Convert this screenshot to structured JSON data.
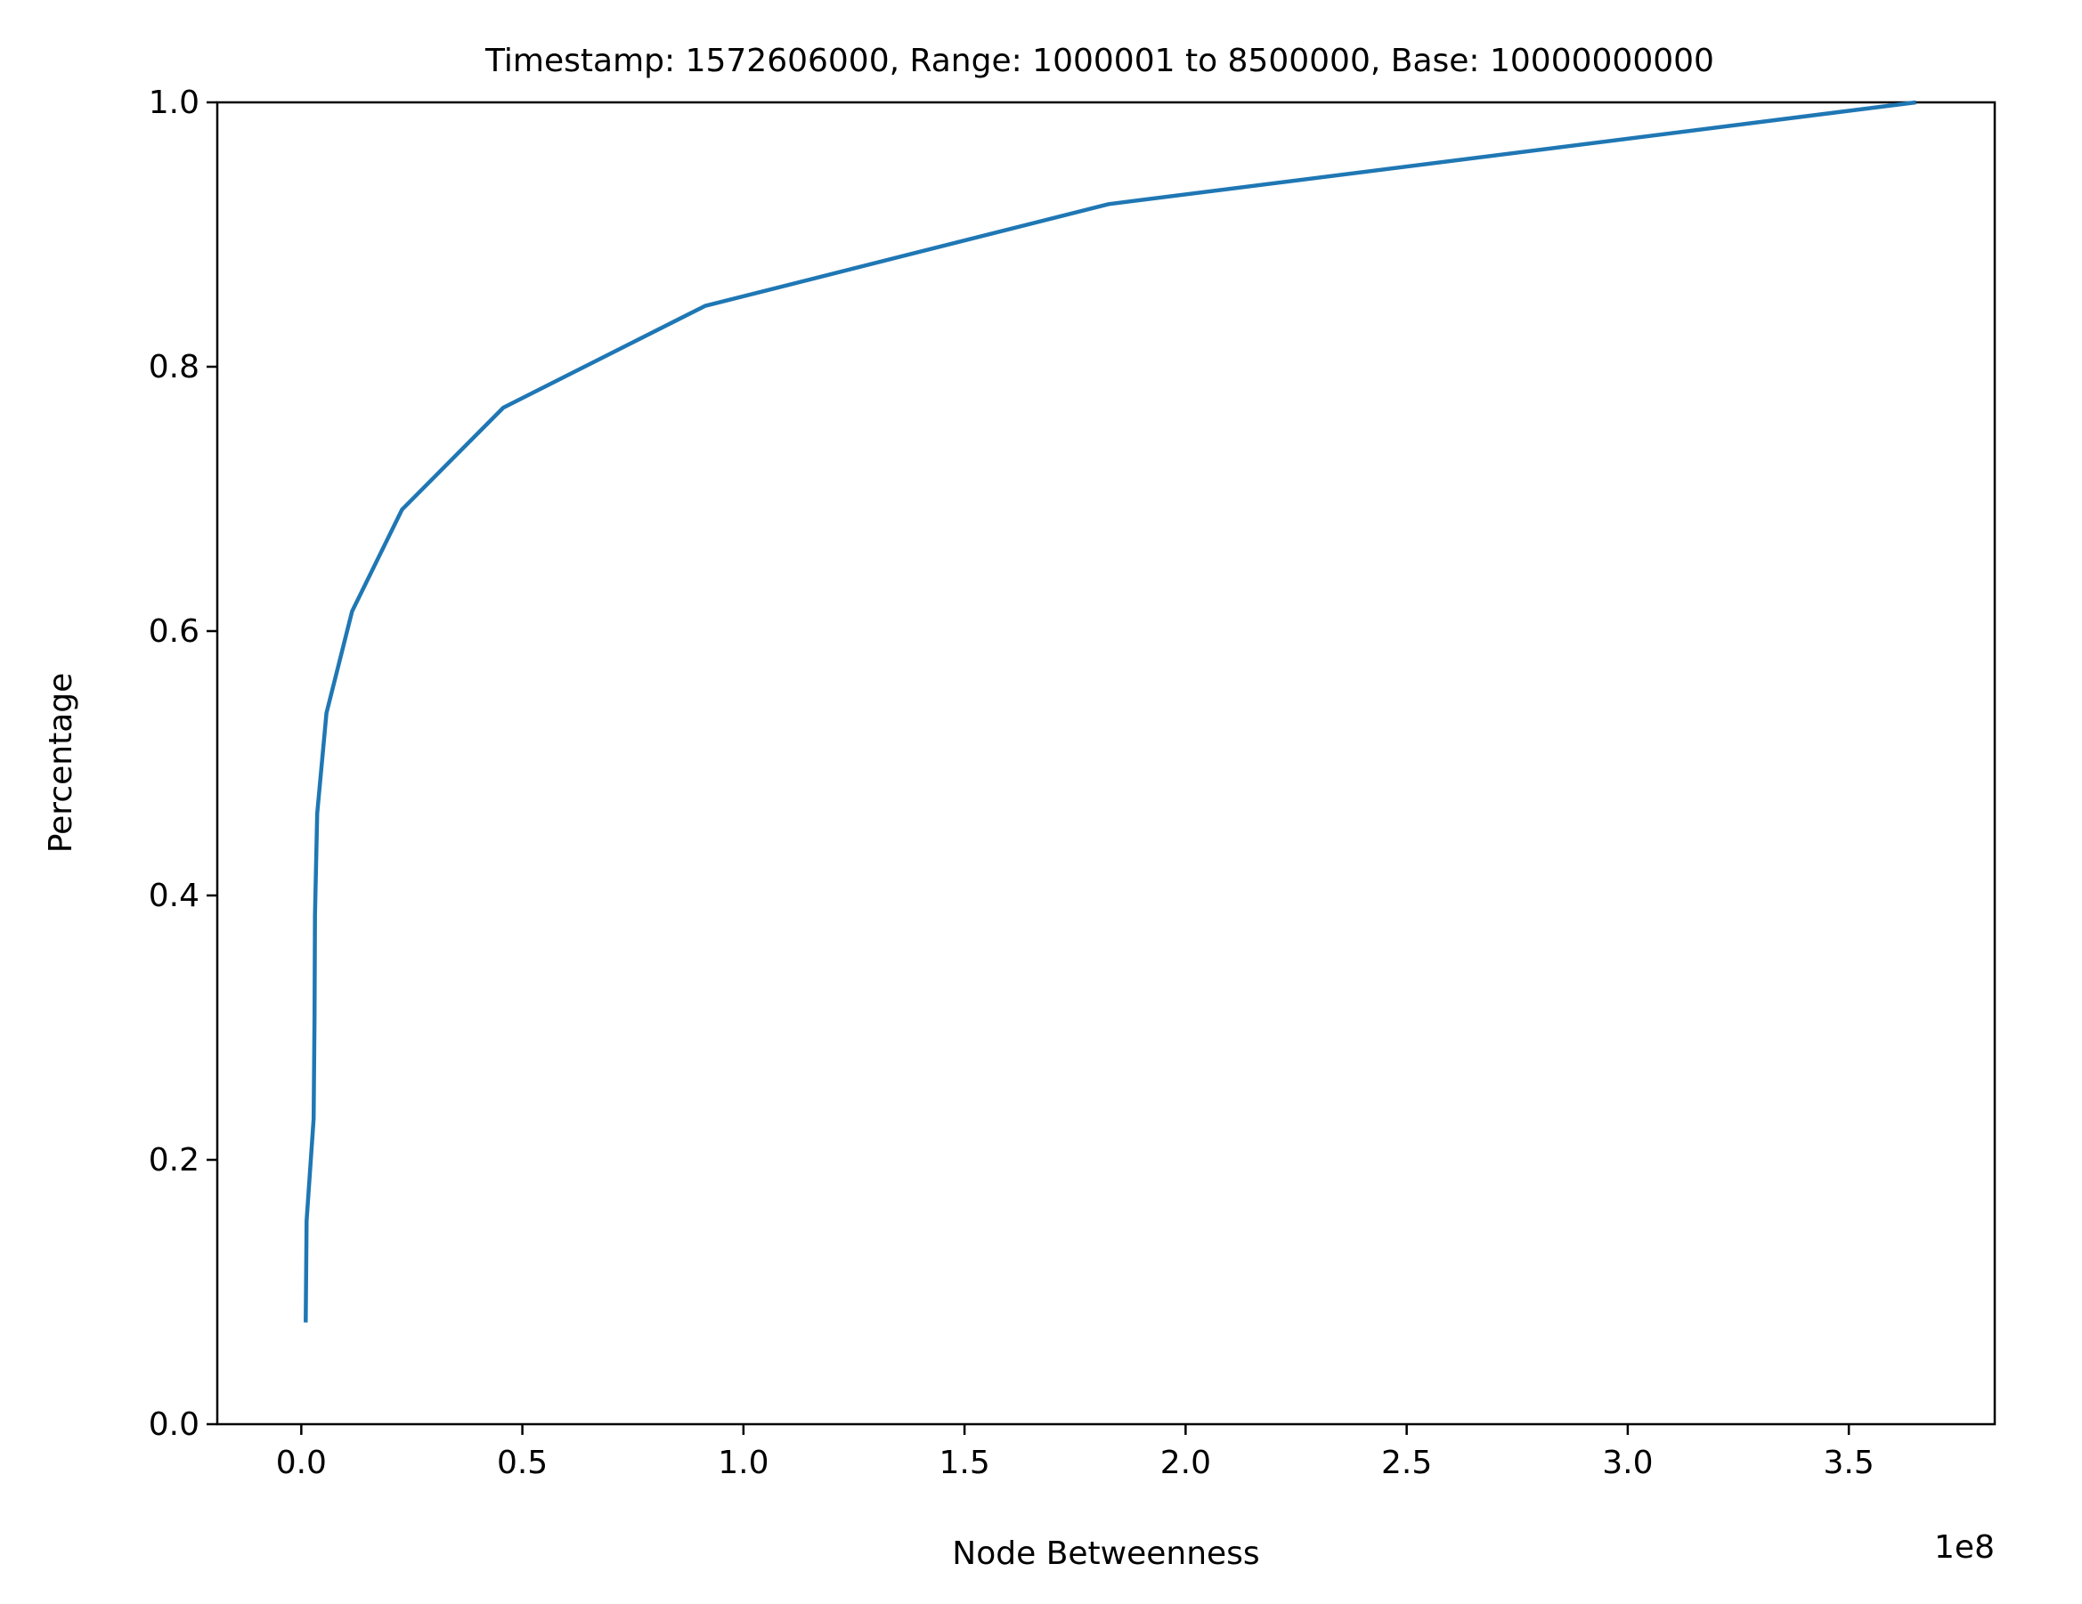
{
  "chart_data": {
    "type": "line",
    "title": "Timestamp: 1572606000, Range: 1000001 to 8500000, Base: 10000000000",
    "xlabel": "Node Betweenness",
    "ylabel": "Percentage",
    "x_offset_label": "1e8",
    "xlim": [
      -0.19,
      3.83
    ],
    "ylim": [
      0,
      1.0
    ],
    "x_ticks": [
      {
        "value": 0.0,
        "label": "0.0"
      },
      {
        "value": 0.5,
        "label": "0.5"
      },
      {
        "value": 1.0,
        "label": "1.0"
      },
      {
        "value": 1.5,
        "label": "1.5"
      },
      {
        "value": 2.0,
        "label": "2.0"
      },
      {
        "value": 2.5,
        "label": "2.5"
      },
      {
        "value": 3.0,
        "label": "3.0"
      },
      {
        "value": 3.5,
        "label": "3.5"
      }
    ],
    "y_ticks": [
      {
        "value": 0.0,
        "label": "0.0"
      },
      {
        "value": 0.2,
        "label": "0.2"
      },
      {
        "value": 0.4,
        "label": "0.4"
      },
      {
        "value": 0.6,
        "label": "0.6"
      },
      {
        "value": 0.8,
        "label": "0.8"
      },
      {
        "value": 1.0,
        "label": "1.0"
      }
    ],
    "grid": false,
    "series": [
      {
        "color": "#1f77b4",
        "points": [
          {
            "x": 0.01,
            "y": 0.077
          },
          {
            "x": 0.012,
            "y": 0.154
          },
          {
            "x": 0.028,
            "y": 0.231
          },
          {
            "x": 0.03,
            "y": 0.308
          },
          {
            "x": 0.031,
            "y": 0.385
          },
          {
            "x": 0.036,
            "y": 0.462
          },
          {
            "x": 0.057,
            "y": 0.538
          },
          {
            "x": 0.115,
            "y": 0.615
          },
          {
            "x": 0.228,
            "y": 0.692
          },
          {
            "x": 0.457,
            "y": 0.769
          },
          {
            "x": 0.913,
            "y": 0.846
          },
          {
            "x": 1.826,
            "y": 0.923
          },
          {
            "x": 3.652,
            "y": 1.0
          }
        ]
      }
    ]
  }
}
